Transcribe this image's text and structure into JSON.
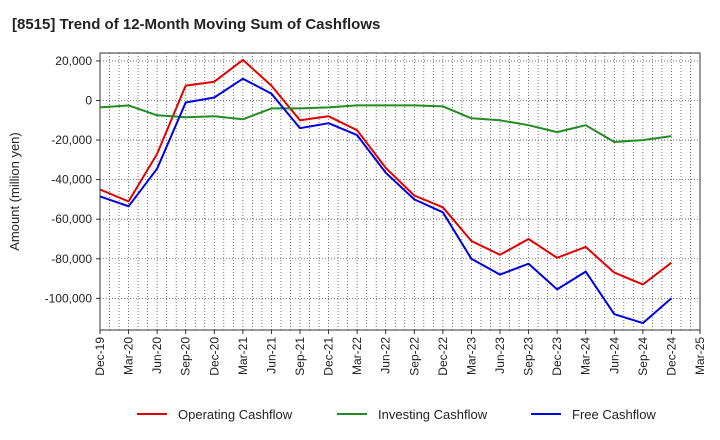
{
  "chart_data": {
    "type": "line",
    "title": "[8515]  Trend of 12-Month Moving Sum of Cashflows",
    "xlabel": "",
    "ylabel": "Amount (million yen)",
    "categories": [
      "Dec-19",
      "Mar-20",
      "Jun-20",
      "Sep-20",
      "Dec-20",
      "Mar-21",
      "Jun-21",
      "Sep-21",
      "Dec-21",
      "Mar-22",
      "Jun-22",
      "Sep-22",
      "Dec-22",
      "Mar-23",
      "Jun-23",
      "Sep-23",
      "Dec-23",
      "Mar-24",
      "Jun-24",
      "Sep-24",
      "Dec-24",
      "Mar-25"
    ],
    "ylim": [
      -116000,
      24000
    ],
    "yticks": [
      20000,
      0,
      -20000,
      -40000,
      -60000,
      -80000,
      -100000
    ],
    "ytick_labels": [
      "20,000",
      "0",
      "-20,000",
      "-40,000",
      "-60,000",
      "-80,000",
      "-100,000"
    ],
    "grid": true,
    "legend_position": "bottom",
    "series": [
      {
        "name": "Operating Cashflow",
        "color": "#e00000",
        "values": [
          -45000,
          -51000,
          -27000,
          7500,
          9500,
          20500,
          7500,
          -10000,
          -8000,
          -15000,
          -34000,
          -48000,
          -54000,
          -71000,
          -78000,
          -70000,
          -79500,
          -74000,
          -87000,
          -93000,
          -82000,
          null
        ]
      },
      {
        "name": "Investing Cashflow",
        "color": "#228b22",
        "values": [
          -3500,
          -2500,
          -7500,
          -8500,
          -8000,
          -9500,
          -4000,
          -4000,
          -3500,
          -2500,
          -2500,
          -2500,
          -3000,
          -9000,
          -10000,
          -12500,
          -16000,
          -12500,
          -21000,
          -20000,
          -18000,
          null
        ]
      },
      {
        "name": "Free Cashflow",
        "color": "#0000e0",
        "values": [
          -48500,
          -53500,
          -34500,
          -1000,
          1500,
          11000,
          3500,
          -14000,
          -11500,
          -17500,
          -36500,
          -50000,
          -56500,
          -80000,
          -88000,
          -82500,
          -95500,
          -86500,
          -108000,
          -112500,
          -100000,
          null
        ]
      }
    ]
  }
}
